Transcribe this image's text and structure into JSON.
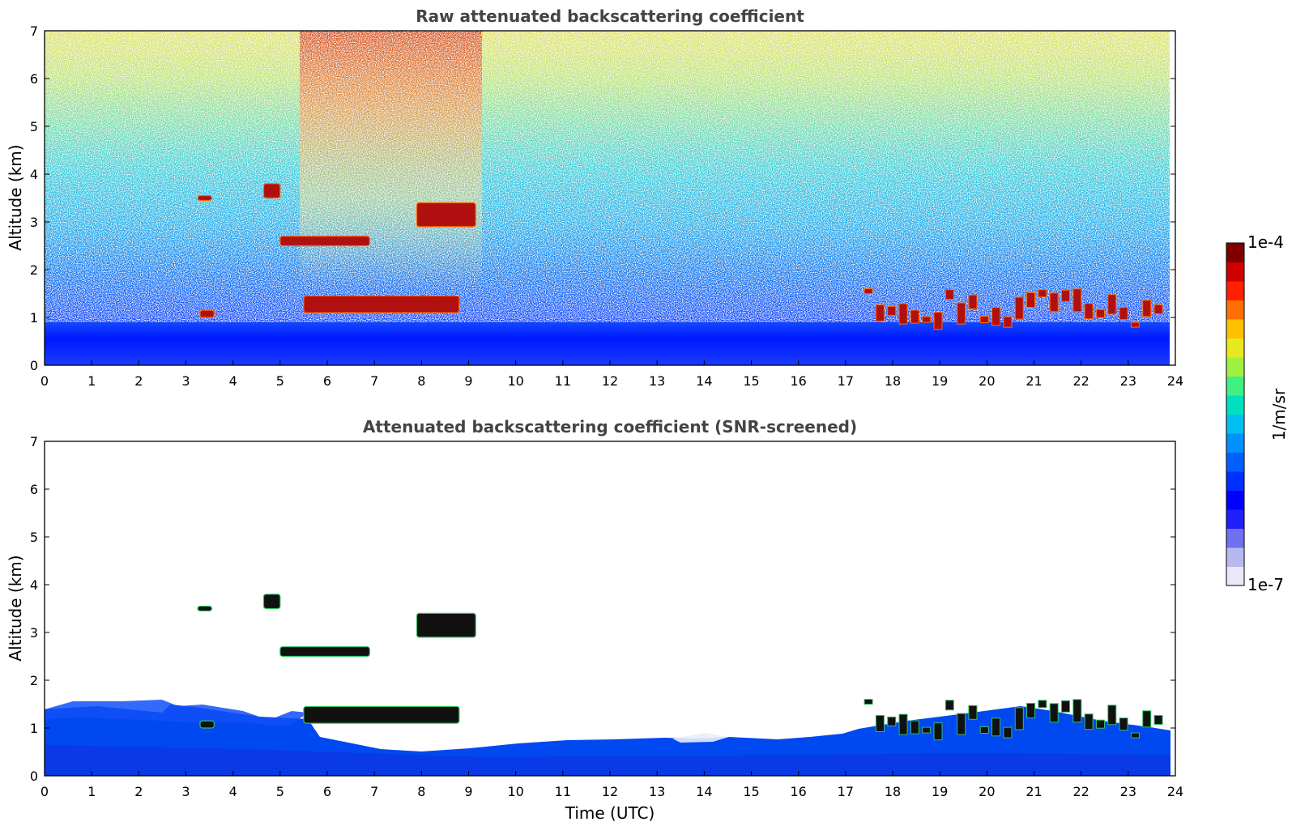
{
  "chart_data": [
    {
      "type": "heatmap",
      "title": "Raw attenuated backscattering coefficient",
      "xlabel": "",
      "ylabel": "Altitude (km)",
      "xlim": [
        0,
        24
      ],
      "ylim": [
        0,
        7
      ],
      "xticks": [
        "0",
        "1",
        "2",
        "3",
        "4",
        "5",
        "6",
        "7",
        "8",
        "9",
        "10",
        "11",
        "12",
        "13",
        "14",
        "15",
        "16",
        "17",
        "18",
        "19",
        "20",
        "21",
        "22",
        "23",
        "24"
      ],
      "yticks": [
        "0",
        "1",
        "2",
        "3",
        "4",
        "5",
        "6",
        "7"
      ],
      "x_end_of_data": 23.85,
      "cloud_features": [
        {
          "x": [
            3.25,
            3.55
          ],
          "y": [
            3.45,
            3.55
          ]
        },
        {
          "x": [
            4.65,
            5.0
          ],
          "y": [
            3.5,
            3.8
          ]
        },
        {
          "x": [
            5.0,
            6.9
          ],
          "y": [
            2.5,
            2.7
          ]
        },
        {
          "x": [
            7.9,
            9.15
          ],
          "y": [
            2.9,
            3.4
          ]
        },
        {
          "x": [
            3.3,
            3.6
          ],
          "y": [
            1.0,
            1.15
          ]
        },
        {
          "x": [
            5.5,
            8.8
          ],
          "y": [
            1.1,
            1.45
          ]
        },
        {
          "x": [
            17.4,
            23.8
          ],
          "y": [
            0.7,
            1.6
          ]
        }
      ],
      "grid": false
    },
    {
      "type": "heatmap",
      "title": "Attenuated backscattering coefficient (SNR-screened)",
      "xlabel": "Time (UTC)",
      "ylabel": "Altitude (km)",
      "xlim": [
        0,
        24
      ],
      "ylim": [
        0,
        7
      ],
      "xticks": [
        "0",
        "1",
        "2",
        "3",
        "4",
        "5",
        "6",
        "7",
        "8",
        "9",
        "10",
        "11",
        "12",
        "13",
        "14",
        "15",
        "16",
        "17",
        "18",
        "19",
        "20",
        "21",
        "22",
        "23",
        "24"
      ],
      "yticks": [
        "0",
        "1",
        "2",
        "3",
        "4",
        "5",
        "6",
        "7"
      ],
      "grid": false
    }
  ],
  "colorbar": {
    "label": "1/m/sr",
    "max_label": "1e-4",
    "min_label": "1e-7",
    "scale": "log",
    "colormap": [
      "#e8e8f8",
      "#b8b8f0",
      "#7070f0",
      "#2020f8",
      "#0000ff",
      "#0030ff",
      "#0060ff",
      "#0090ff",
      "#00c0f0",
      "#00e0c0",
      "#40f080",
      "#a0f040",
      "#e8e820",
      "#ffc000",
      "#ff7000",
      "#ff2000",
      "#d00000",
      "#800000"
    ]
  }
}
